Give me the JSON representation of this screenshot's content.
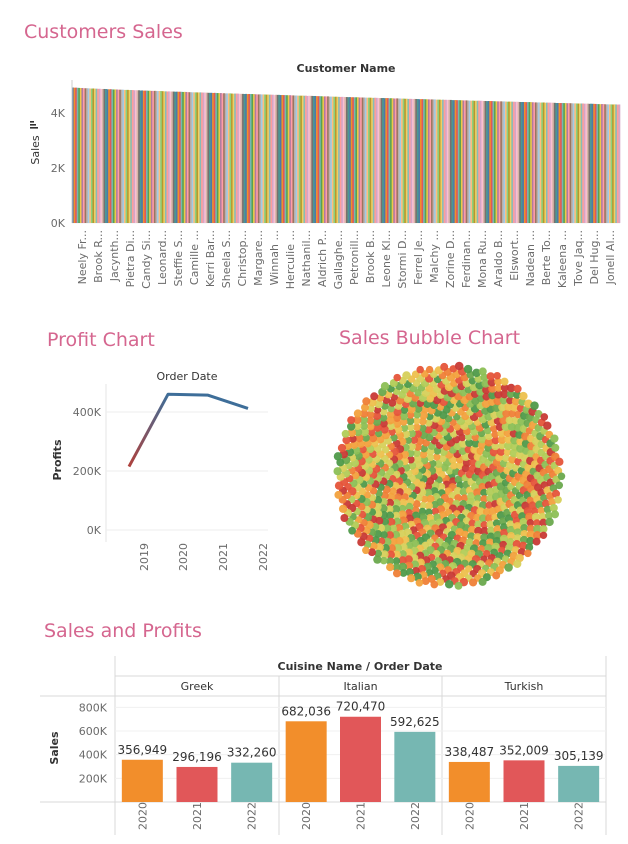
{
  "dashboard": {
    "customers_title": "Customers Sales",
    "profit_title": "Profit Chart",
    "bubble_title": "Sales Bubble Chart",
    "sales_profits_title": "Sales and Profits"
  },
  "chart_data": [
    {
      "id": "customers_sales",
      "type": "bar",
      "title": "Customer Name",
      "ylabel": "Sales",
      "ylim": [
        0,
        5000
      ],
      "yticks": [
        0,
        2000,
        4000
      ],
      "ytick_labels": [
        "0K",
        "2K",
        "4K"
      ],
      "visible_category_labels": [
        "Neely Fr...",
        "Brook R...",
        "Jacynth...",
        "Pietra Di...",
        "Candy Si...",
        "Leonard...",
        "Steffie S...",
        "Camille ...",
        "Kerri Bar...",
        "Sheela S...",
        "Christop...",
        "Margare...",
        "Winnah ...",
        "Herculie ...",
        "Nathanil...",
        "Aldrich P...",
        "Gallaghe...",
        "Petronill...",
        "Brook B...",
        "Leone Kl...",
        "Stormi D...",
        "Ferrel Je...",
        "Malchy ...",
        "Zorine D...",
        "Ferdinan...",
        "Mona Ru...",
        "Araldo B...",
        "Elswort...",
        "Nadean ...",
        "Berte To...",
        "Kaleena ...",
        "Tove Jaq...",
        "Del Hug...",
        "Jonell Al..."
      ],
      "bar_count": 348,
      "value_range": [
        4310,
        4930
      ],
      "sorted": "descending",
      "colors": [
        "#4e79a7",
        "#f28e2b",
        "#e15759",
        "#76b7b2",
        "#59a14f",
        "#edc948",
        "#b07aa1",
        "#ff9da7",
        "#9c755f",
        "#bab0ac",
        "#a0cbe8",
        "#ffbe7d",
        "#8cd17d",
        "#b6992d",
        "#f1ce63",
        "#86bcb6",
        "#ff9d9a",
        "#d4a6c8",
        "#fabfd2",
        "#d7b5a6",
        "#79706e",
        "#499894"
      ]
    },
    {
      "id": "profit_chart",
      "type": "line",
      "title": "Order Date",
      "ylabel": "Profits",
      "x": [
        "2019",
        "2020",
        "2021",
        "2022"
      ],
      "values": [
        215000,
        460000,
        457000,
        412000
      ],
      "ylim": [
        0,
        500000
      ],
      "yticks": [
        0,
        200000,
        400000
      ],
      "ytick_labels": [
        "0K",
        "200K",
        "400K"
      ],
      "colors": {
        "start": "#b2403a",
        "end": "#3e6e99"
      }
    },
    {
      "id": "sales_bubble",
      "type": "scatter",
      "shape": "packed-bubbles",
      "bubble_count": 1000,
      "palette": [
        "#4f9a4a",
        "#6aa94d",
        "#8cbf55",
        "#b2cc57",
        "#d6d05a",
        "#edc04d",
        "#f2a13d",
        "#ef7f37",
        "#e5543a",
        "#c83a35"
      ]
    },
    {
      "id": "sales_and_profits",
      "type": "bar",
      "title": "Cuisine Name / Order Date",
      "ylabel": "Sales",
      "groups": [
        "Greek",
        "Italian",
        "Turkish"
      ],
      "categories": [
        "2020",
        "2021",
        "2022"
      ],
      "values": [
        [
          356949,
          296196,
          332260
        ],
        [
          682036,
          720470,
          592625
        ],
        [
          338487,
          352009,
          305139
        ]
      ],
      "value_labels": [
        [
          "356,949",
          "296,196",
          "332,260"
        ],
        [
          "682,036",
          "720,470",
          "592,625"
        ],
        [
          "338,487",
          "352,009",
          "305,139"
        ]
      ],
      "ylim": [
        0,
        900000
      ],
      "yticks": [
        200000,
        400000,
        600000,
        800000
      ],
      "ytick_labels": [
        "200K",
        "400K",
        "600K",
        "800K"
      ],
      "colors": [
        "#f28e2b",
        "#e15759",
        "#76b7b2"
      ]
    }
  ]
}
